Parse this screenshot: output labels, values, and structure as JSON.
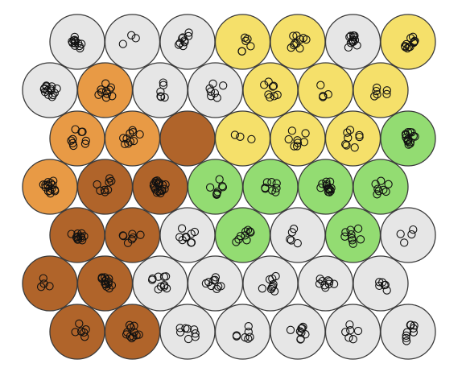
{
  "colors": {
    "grey": "#e6e6e6",
    "yellow": "#f5e06a",
    "orange": "#e89a45",
    "brown": "#b0642a",
    "green": "#93dc72",
    "outline": "#3a3a3a",
    "point": "#111111"
  },
  "grid": {
    "rows": 7,
    "cols": 7,
    "node_colors": [
      [
        "grey",
        "grey",
        "grey",
        "yellow",
        "yellow",
        "grey",
        "yellow"
      ],
      [
        "grey",
        "orange",
        "grey",
        "grey",
        "yellow",
        "yellow",
        "yellow"
      ],
      [
        "orange",
        "orange",
        "brown",
        "yellow",
        "yellow",
        "yellow",
        "green"
      ],
      [
        "orange",
        "brown",
        "brown",
        "green",
        "green",
        "green",
        "green"
      ],
      [
        "brown",
        "brown",
        "grey",
        "green",
        "grey",
        "green",
        "grey"
      ],
      [
        "brown",
        "brown",
        "grey",
        "grey",
        "grey",
        "grey",
        "grey"
      ],
      [
        "brown",
        "brown",
        "grey",
        "grey",
        "grey",
        "grey",
        "grey"
      ]
    ],
    "node_hits": [
      [
        12,
        3,
        9,
        6,
        10,
        12,
        11
      ],
      [
        14,
        10,
        6,
        7,
        8,
        4,
        6
      ],
      [
        9,
        10,
        0,
        3,
        8,
        8,
        14
      ],
      [
        15,
        8,
        20,
        8,
        8,
        14,
        8
      ],
      [
        12,
        7,
        10,
        9,
        5,
        9,
        4
      ],
      [
        4,
        14,
        10,
        9,
        9,
        9,
        6
      ],
      [
        6,
        11,
        8,
        7,
        9,
        6,
        9
      ]
    ]
  }
}
